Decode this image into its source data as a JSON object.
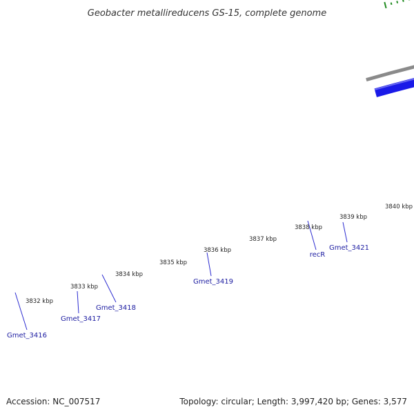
{
  "title": "Geobacter metallireducens GS-15, complete genome",
  "footer": {
    "accession": "Accession: NC_007517",
    "summary": "Topology: circular; Length: 3,997,420 bp; Genes: 3,577"
  },
  "colors": {
    "backbone": "#8a8a8a",
    "tick": "#1f8a1f",
    "label": "#1a1aa0",
    "leader": "#2a2ad0",
    "blue": "#1a1ae8",
    "cyan": "#13e6e6",
    "green": "#18e89a",
    "magenta": "#ee1a96",
    "lightgray": "#c4c4c4",
    "darkgray": "#6a6a6a"
  },
  "kbp_labels": [
    "3832 kbp",
    "3833 kbp",
    "3834 kbp",
    "3835 kbp",
    "3836 kbp",
    "3837 kbp",
    "3838 kbp",
    "3839 kbp",
    "3840 kbp"
  ],
  "genes": [
    {
      "name": "Gmet_3416"
    },
    {
      "name": "Gmet_3417"
    },
    {
      "name": "Gmet_3418"
    },
    {
      "name": "Gmet_3419"
    },
    {
      "name": "recR"
    },
    {
      "name": "Gmet_3421"
    }
  ]
}
